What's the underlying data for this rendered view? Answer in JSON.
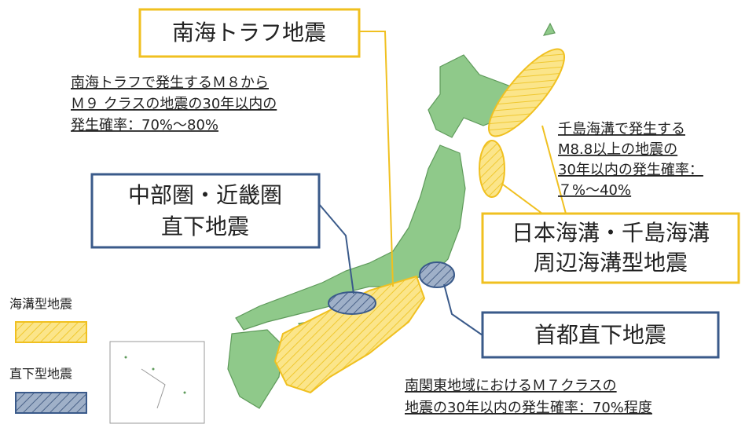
{
  "labels": {
    "nankai_title": "南海トラフ地震",
    "nankai_note": [
      "南海トラフで発生するＭ８から",
      "Ｍ９ クラスの地震の30年以内の",
      "発生確率：70%～80%"
    ],
    "chubu_title": [
      "中部圏・近畿圏",
      "直下地震"
    ],
    "chishima_note": [
      "千島海溝で発生する",
      "M8.8以上の地震の",
      "30年以内の発生確率：",
      "７%～40%"
    ],
    "trench_title": [
      "日本海溝・千島海溝",
      "周辺海溝型地震"
    ],
    "capital_title": "首都直下地震",
    "capital_note": [
      "南関東地域におけるＭ７クラスの",
      "地震の30年以内の発生確率：70%程度"
    ]
  },
  "legend": [
    "海溝型地震",
    "直下型地震"
  ]
}
